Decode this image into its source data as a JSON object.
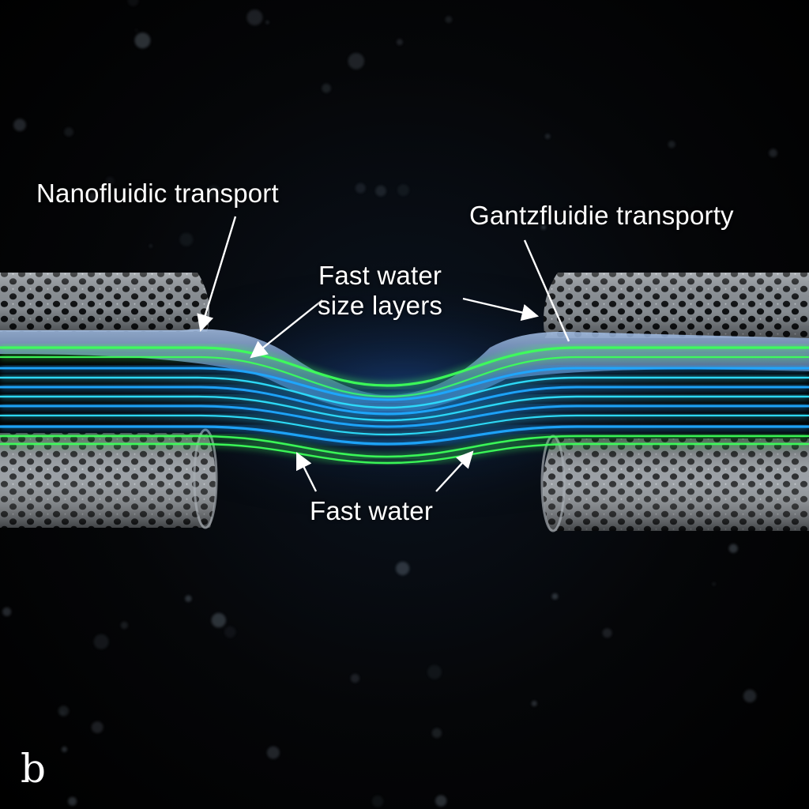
{
  "labels": {
    "nanofluidic": "Nanofluidic transport",
    "gantzfluidie": "Gantzfluidie transporty",
    "size_layers_line1": "Fast water",
    "size_layers_line2": "size layers",
    "fast_water": "Fast water"
  },
  "panel_letter": "b",
  "colors": {
    "background": "#000000",
    "tube_mesh": "#9aa0a6",
    "stream_green": "#3dff5a",
    "stream_blue": "#1fa8ff",
    "stream_cyan": "#2fe0ff",
    "water_sheet": "#7fa6d8",
    "text": "#ffffff"
  },
  "icons": {
    "left_tube": "porous-nanotube-icon",
    "right_tube": "porous-nanotube-icon",
    "flow": "water-streamlines-icon"
  }
}
